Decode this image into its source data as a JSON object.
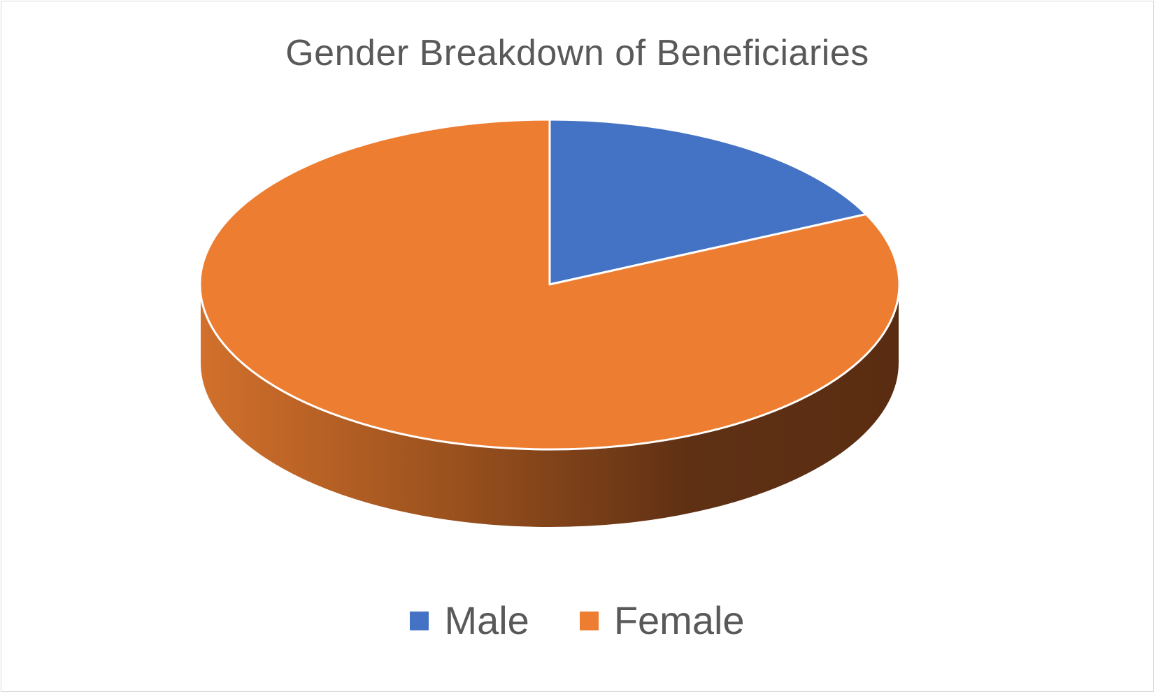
{
  "chart_data": {
    "type": "pie",
    "title": "Gender Breakdown of Beneficiaries",
    "style": "3d",
    "categories": [
      "Male",
      "Female"
    ],
    "values": [
      18,
      82
    ],
    "colors": [
      "#4472c4",
      "#ed7d31"
    ],
    "legend": {
      "position": "bottom",
      "entries": [
        {
          "label": "Male",
          "color": "#4472c4"
        },
        {
          "label": "Female",
          "color": "#ed7d31"
        }
      ]
    }
  }
}
